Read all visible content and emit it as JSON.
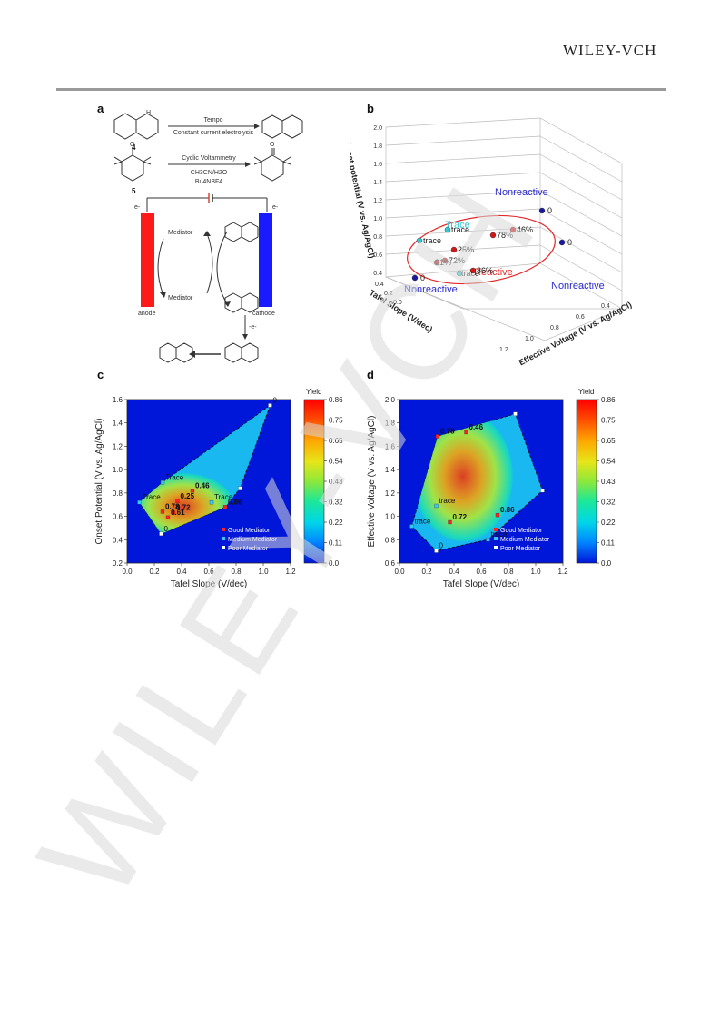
{
  "header": {
    "publisher": "WILEY-VCH"
  },
  "panel_a": {
    "letter": "a",
    "compound4": "4",
    "compound5": "5",
    "nh": "H",
    "arrow1_top": "Tempo",
    "arrow1_bottom": "Constant current electrolysis",
    "arrow2_top": "Cyclic Voltammetry",
    "arrow2_mid": "CH3CN/H2O",
    "arrow2_bottom": "Bu4NBF4",
    "electron_left": "e-",
    "electron_right": "e-",
    "mediator_top": "Mediator",
    "mediator_bottom": "Mediator",
    "anode": "anode",
    "cathode": "cathode",
    "minus_e": "-e-",
    "colors": {
      "anode": "#ff1a1a",
      "cathode": "#1a1aff"
    }
  },
  "panel_b": {
    "letter": "b",
    "z_ticks": [
      "2.0",
      "1.8",
      "1.6",
      "1.4",
      "1.2",
      "1.0",
      "0.8",
      "0.6",
      "0.4"
    ],
    "tafel_ticks": [
      "0.4",
      "0.2",
      "0.0"
    ],
    "eff_ticks": [
      "1.2",
      "1.0",
      "0.8",
      "0.6",
      "0.4"
    ],
    "z_label": "Onset potential (V vs. Ag/AgCl)",
    "x_label": "Tafel Slope (V/dec)",
    "y_label": "Effective Voltage (V vs. Ag/AgCl)",
    "labels": {
      "nonreactive_top": "Nonreactive",
      "nonreactive_bottom": "Nonreactive",
      "nonreactive_right": "Nonreactive",
      "trace_cyan": "Trace",
      "reactive": "Reactive"
    },
    "points": [
      {
        "label": "0",
        "color": "#1a1aa0"
      },
      {
        "label": "0",
        "color": "#1a1aa0"
      },
      {
        "label": "0",
        "color": "#1a1aa0"
      },
      {
        "label": "trace",
        "color": "#35c7d4"
      },
      {
        "label": "trace",
        "color": "#35c7d4"
      },
      {
        "label": "trace",
        "color": "#35c7d4"
      },
      {
        "label": "78%",
        "color": "#d01818"
      },
      {
        "label": "46%",
        "color": "#d01818"
      },
      {
        "label": "25%",
        "color": "#d01818"
      },
      {
        "label": "72%",
        "color": "#d01818"
      },
      {
        "label": "61%",
        "color": "#d01818"
      },
      {
        "label": "86%",
        "color": "#d01818"
      }
    ]
  },
  "chart_data": [
    {
      "type": "scatter",
      "panel": "c",
      "xlabel": "Tafel Slope (V/dec)",
      "ylabel": "Onset Potential (V vs. Ag/AgCl)",
      "xlim": [
        0.0,
        1.2
      ],
      "ylim": [
        0.2,
        1.6
      ],
      "xticks": [
        "0.0",
        "0.2",
        "0.4",
        "0.6",
        "0.8",
        "1.0",
        "1.2"
      ],
      "yticks": [
        "0.2",
        "0.4",
        "0.6",
        "0.8",
        "1.0",
        "1.2",
        "1.4",
        "1.6"
      ],
      "colorbar": {
        "title": "Yield",
        "ticks": [
          "0.86",
          "0.75",
          "0.65",
          "0.54",
          "0.43",
          "0.32",
          "0.22",
          "0.11",
          "0.0"
        ]
      },
      "legend": [
        "Good Mediator",
        "Medium Mediator",
        "Poor Mediator"
      ],
      "legend_position": "bottom-right",
      "points": [
        {
          "x": 0.26,
          "y": 0.89,
          "label": "Trace",
          "class": "medium"
        },
        {
          "x": 0.09,
          "y": 0.72,
          "label": "Trace",
          "class": "medium"
        },
        {
          "x": 0.62,
          "y": 0.72,
          "label": "Trace",
          "class": "medium"
        },
        {
          "x": 0.48,
          "y": 0.82,
          "label": "0.46",
          "class": "good"
        },
        {
          "x": 0.37,
          "y": 0.73,
          "label": "0.25",
          "class": "good"
        },
        {
          "x": 0.26,
          "y": 0.64,
          "label": "0.78",
          "class": "good"
        },
        {
          "x": 0.34,
          "y": 0.63,
          "label": "0.72",
          "class": "good"
        },
        {
          "x": 0.3,
          "y": 0.59,
          "label": "0.61",
          "class": "good"
        },
        {
          "x": 0.72,
          "y": 0.68,
          "label": "0.86",
          "class": "good"
        },
        {
          "x": 0.25,
          "y": 0.45,
          "label": "0",
          "class": "poor"
        },
        {
          "x": 0.83,
          "y": 0.84,
          "label": "",
          "class": "poor"
        },
        {
          "x": 1.05,
          "y": 1.55,
          "label": "0",
          "class": "poor"
        }
      ]
    },
    {
      "type": "scatter",
      "panel": "d",
      "xlabel": "Tafel Slope (V/dec)",
      "ylabel": "Effective Voltage (V vs. Ag/AgCl)",
      "xlim": [
        0.0,
        1.2
      ],
      "ylim": [
        0.5,
        2.1
      ],
      "xticks": [
        "0.0",
        "0.2",
        "0.4",
        "0.6",
        "0.8",
        "1.0",
        "1.2"
      ],
      "yticks": [
        "0.6",
        "0.8",
        "1.0",
        "1.2",
        "1.4",
        "1.6",
        "1.8",
        "2.0"
      ],
      "colorbar": {
        "title": "Yield",
        "ticks": [
          "0.86",
          "0.75",
          "0.65",
          "0.54",
          "0.43",
          "0.32",
          "0.22",
          "0.11",
          "0.0"
        ]
      },
      "legend": [
        "Good Mediator",
        "Medium Mediator",
        "Poor Mediator"
      ],
      "legend_position": "bottom-right",
      "points": [
        {
          "x": 0.28,
          "y": 1.74,
          "label": "0.78",
          "class": "good"
        },
        {
          "x": 0.49,
          "y": 1.78,
          "label": "0.46",
          "class": "good"
        },
        {
          "x": 0.72,
          "y": 0.97,
          "label": "0.86",
          "class": "good"
        },
        {
          "x": 0.37,
          "y": 0.9,
          "label": "0.72",
          "class": "good"
        },
        {
          "x": 0.27,
          "y": 1.06,
          "label": "trace",
          "class": "medium"
        },
        {
          "x": 0.09,
          "y": 0.86,
          "label": "trace",
          "class": "medium"
        },
        {
          "x": 0.65,
          "y": 0.73,
          "label": "trace",
          "class": "medium"
        },
        {
          "x": 0.27,
          "y": 0.62,
          "label": "0",
          "class": "poor"
        },
        {
          "x": 0.85,
          "y": 1.96,
          "label": "",
          "class": "poor"
        },
        {
          "x": 1.05,
          "y": 1.21,
          "label": "",
          "class": "poor"
        }
      ]
    }
  ],
  "watermark": {
    "text": "WILEY-VCH",
    "color": "#d9d9d9"
  }
}
